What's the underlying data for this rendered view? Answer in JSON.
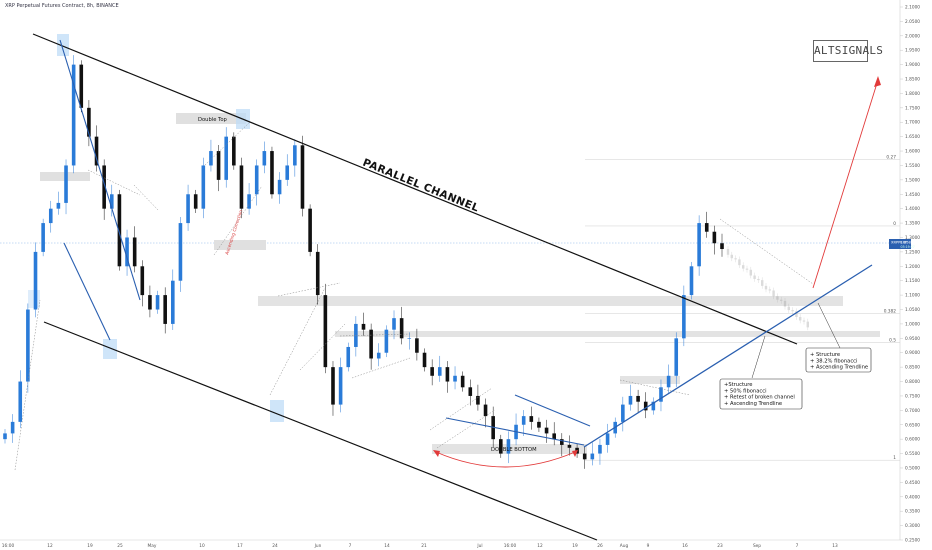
{
  "window_title": "XRP Perpetual Futures Contract, 8h, BINANCE",
  "logo_text": "ALTSIGNALS",
  "chart_data": {
    "type": "candlestick",
    "title": "XRP Perpetual Futures Contract, 8h, BINANCE",
    "ylim": [
      0.24,
      2.12
    ],
    "y_ticks": [
      "2.1000",
      "2.0500",
      "2.0000",
      "1.9500",
      "1.9000",
      "1.8500",
      "1.8000",
      "1.7500",
      "1.7000",
      "1.6500",
      "1.6000",
      "1.5500",
      "1.5000",
      "1.4500",
      "1.4000",
      "1.3500",
      "1.3000",
      "1.2500",
      "1.2000",
      "1.1500",
      "1.1000",
      "1.0500",
      "1.0000",
      "0.9500",
      "0.9000",
      "0.8500",
      "0.8000",
      "0.7500",
      "0.7000",
      "0.6500",
      "0.6000",
      "0.5500",
      "0.5000",
      "0.4500",
      "0.4000",
      "0.3500",
      "0.3000",
      "0.2500"
    ],
    "x_ticks": [
      "16:00",
      "12",
      "19",
      "25",
      "May",
      "10",
      "17",
      "24",
      "Jun",
      "7",
      "14",
      "21",
      "Jul",
      "16:00",
      "12",
      "19",
      "26",
      "Aug",
      "9",
      "16",
      "23",
      "Sep",
      "7",
      "13"
    ],
    "price_label": {
      "symbol": "XRPPERP",
      "value": "1.2584",
      "countdown": "03:19:27"
    },
    "fib_levels": [
      {
        "label": "0.27",
        "value": 1.57
      },
      {
        "label": "0",
        "value": 1.34
      },
      {
        "label": "0.382",
        "value": 1.036
      },
      {
        "label": "0.5",
        "value": 0.936
      },
      {
        "label": "1",
        "value": 0.527
      }
    ],
    "annotations": {
      "parallel_channel": "PARALLEL CHANNEL",
      "double_top": "Double Top",
      "double_bottom": "DOUBLE BOTTOM",
      "ascending_correction": "Ascending Correction",
      "box_left": [
        "+Structure",
        "+ 50% fibonacci",
        "+ Retest of broken channel",
        "+ Ascending Trendline"
      ],
      "box_right": [
        "+ Structure",
        "+ 38.2% fibonacci",
        "+ Ascending Trendline"
      ]
    },
    "close_prices": [
      0.62,
      0.66,
      0.8,
      1.05,
      1.25,
      1.35,
      1.4,
      1.42,
      1.55,
      1.9,
      1.75,
      1.65,
      1.55,
      1.4,
      1.45,
      1.2,
      1.3,
      1.2,
      1.1,
      1.05,
      1.1,
      1.0,
      1.15,
      1.35,
      1.45,
      1.4,
      1.55,
      1.6,
      1.5,
      1.65,
      1.55,
      1.4,
      1.45,
      1.55,
      1.6,
      1.45,
      1.5,
      1.55,
      1.62,
      1.4,
      1.25,
      1.1,
      0.85,
      0.72,
      0.85,
      0.92,
      1.0,
      0.98,
      0.88,
      0.9,
      0.98,
      1.02,
      0.95,
      0.95,
      0.9,
      0.85,
      0.82,
      0.85,
      0.8,
      0.82,
      0.78,
      0.75,
      0.72,
      0.68,
      0.6,
      0.55,
      0.6,
      0.65,
      0.68,
      0.66,
      0.64,
      0.62,
      0.6,
      0.58,
      0.57,
      0.55,
      0.53,
      0.55,
      0.58,
      0.62,
      0.66,
      0.72,
      0.75,
      0.73,
      0.7,
      0.73,
      0.78,
      0.82,
      0.95,
      1.1,
      1.2,
      1.35,
      1.32,
      1.28,
      1.26
    ]
  }
}
